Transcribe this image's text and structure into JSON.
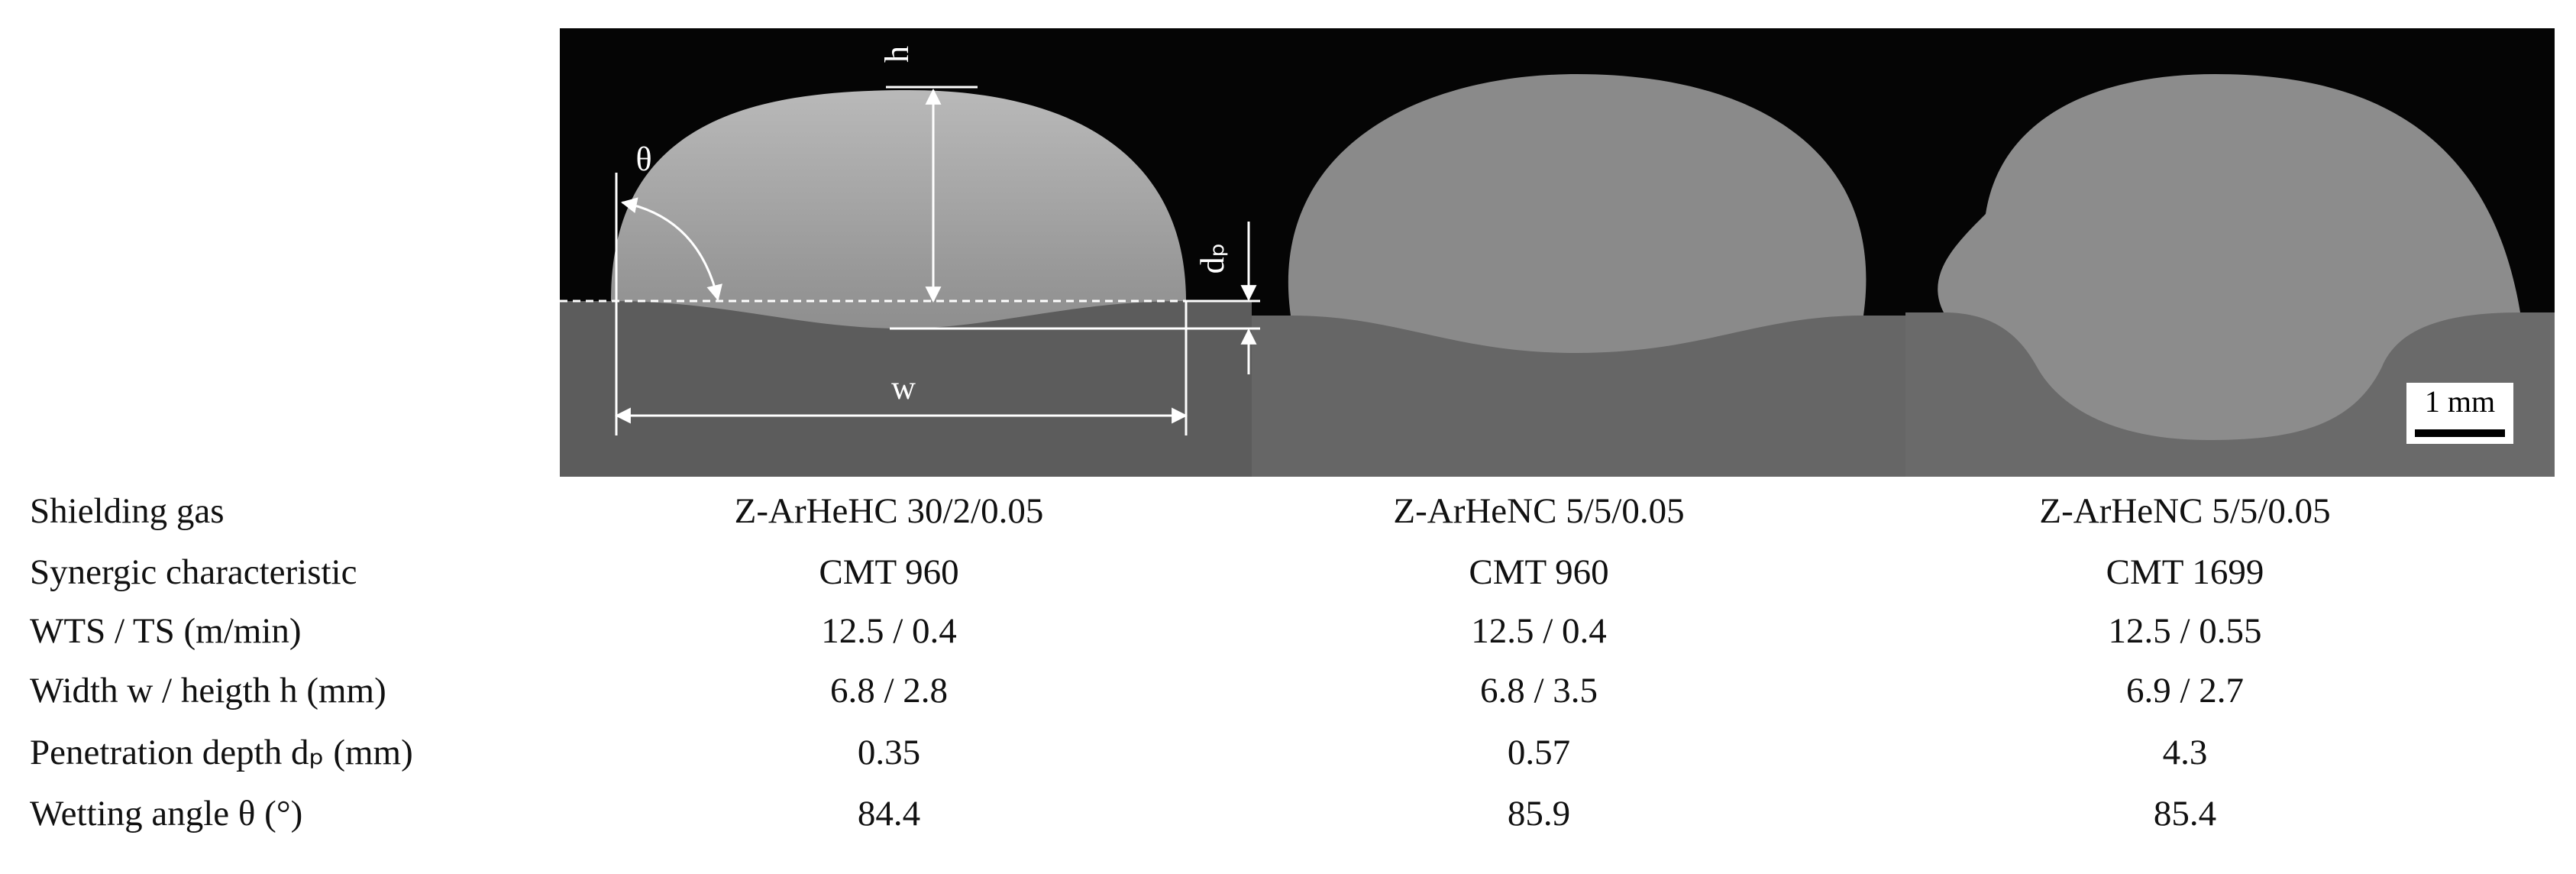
{
  "figure": {
    "annotations": {
      "h": "h",
      "theta": "θ",
      "dp": "dₚ",
      "w": "w",
      "scale_bar": "1 mm"
    },
    "table": {
      "rows": [
        [
          "Shielding gas",
          "Z-ArHeHC 30/2/0.05",
          "Z-ArHeNC 5/5/0.05",
          "Z-ArHeNC 5/5/0.05"
        ],
        [
          "Synergic characteristic",
          "CMT 960",
          "CMT 960",
          "CMT 1699"
        ],
        [
          "WTS / TS (m/min)",
          "12.5 / 0.4",
          "12.5 / 0.4",
          "12.5 / 0.55"
        ],
        [
          "Width w / heigth h (mm)",
          "6.8 / 2.8",
          "6.8 / 3.5",
          "6.9 / 2.7"
        ],
        [
          "Penetration depth dₚ (mm)",
          "0.35",
          "0.57",
          "4.3"
        ],
        [
          "Wetting angle θ (°)",
          "84.4",
          "85.9",
          "85.4"
        ]
      ]
    }
  }
}
